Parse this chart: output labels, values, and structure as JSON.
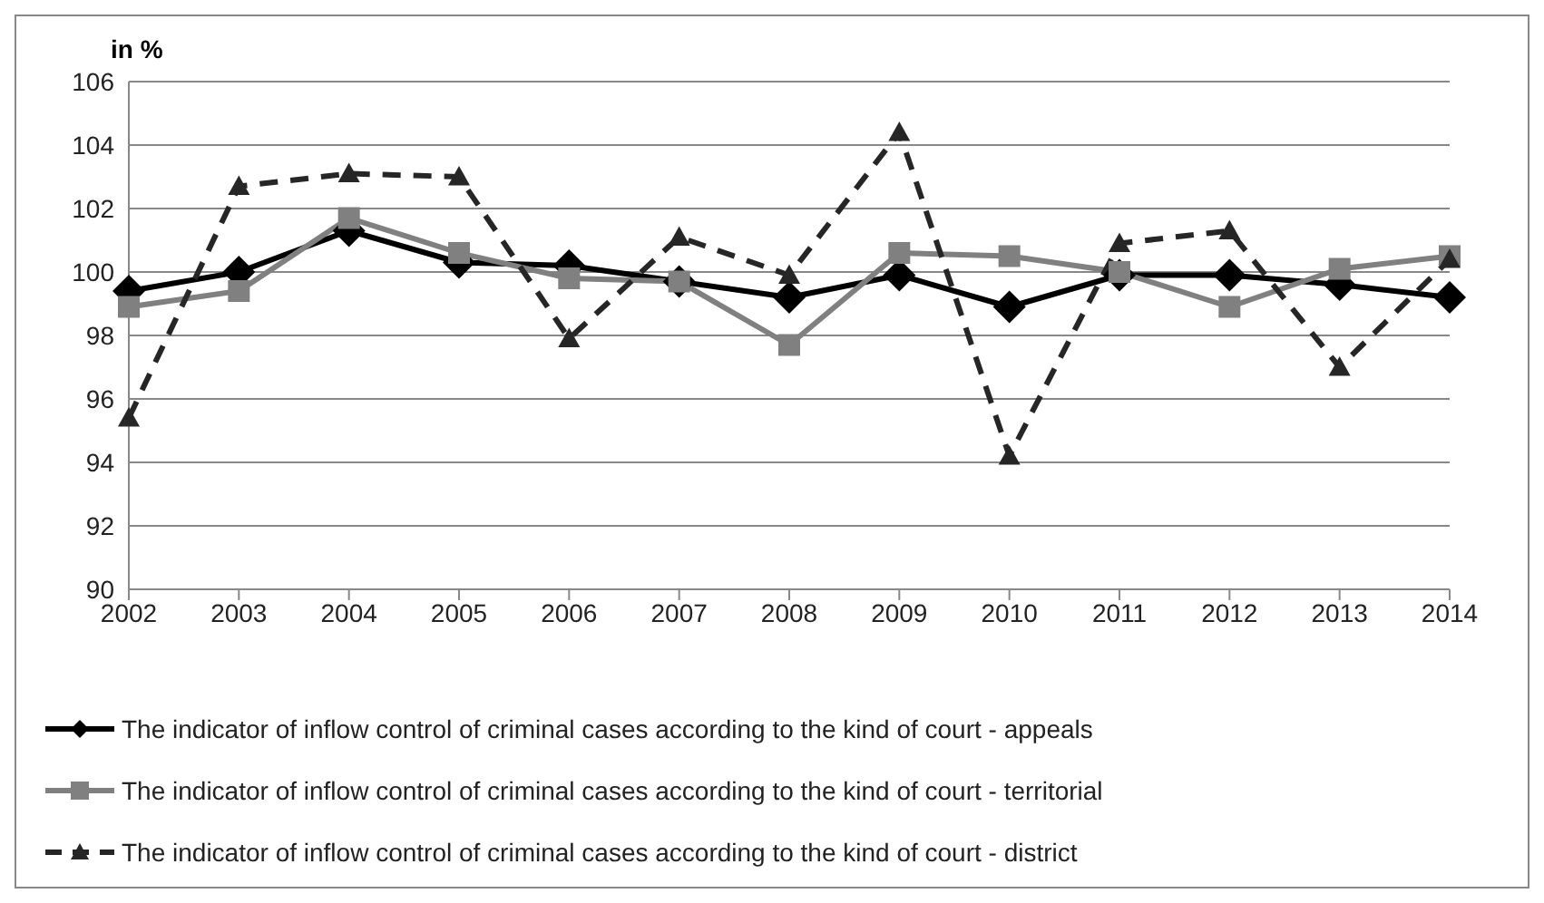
{
  "chart_data": {
    "type": "line",
    "ylabel": "in %",
    "categories": [
      "2002",
      "2003",
      "2004",
      "2005",
      "2006",
      "2007",
      "2008",
      "2009",
      "2010",
      "2011",
      "2012",
      "2013",
      "2014"
    ],
    "series": [
      {
        "name": "The indicator of inflow control of criminal cases according to the kind of court - appeals",
        "color": "#000000",
        "marker": "diamond",
        "line_style": "solid",
        "values": [
          99.4,
          100,
          101.3,
          100.3,
          100.2,
          99.7,
          99.2,
          99.9,
          98.9,
          99.9,
          99.9,
          99.6,
          99.2
        ]
      },
      {
        "name": "The indicator of inflow control of criminal cases according to the kind of court - territorial",
        "color": "#808080",
        "marker": "square",
        "line_style": "solid",
        "values": [
          98.9,
          99.4,
          101.7,
          100.6,
          99.8,
          99.7,
          97.7,
          100.6,
          100.5,
          100,
          98.9,
          100.1,
          100.5
        ]
      },
      {
        "name": "The indicator of inflow control of criminal cases according to the kind of court - district",
        "color": "#262626",
        "marker": "triangle",
        "line_style": "dashed",
        "values": [
          95.4,
          102.7,
          103.1,
          103,
          97.9,
          101.1,
          99.9,
          104.4,
          94.2,
          100.9,
          101.3,
          97,
          100.4
        ]
      }
    ],
    "ylim": [
      90,
      106
    ],
    "yticks": [
      90,
      92,
      94,
      96,
      98,
      100,
      102,
      104,
      106
    ],
    "grid": "y",
    "legend": "bottom"
  }
}
